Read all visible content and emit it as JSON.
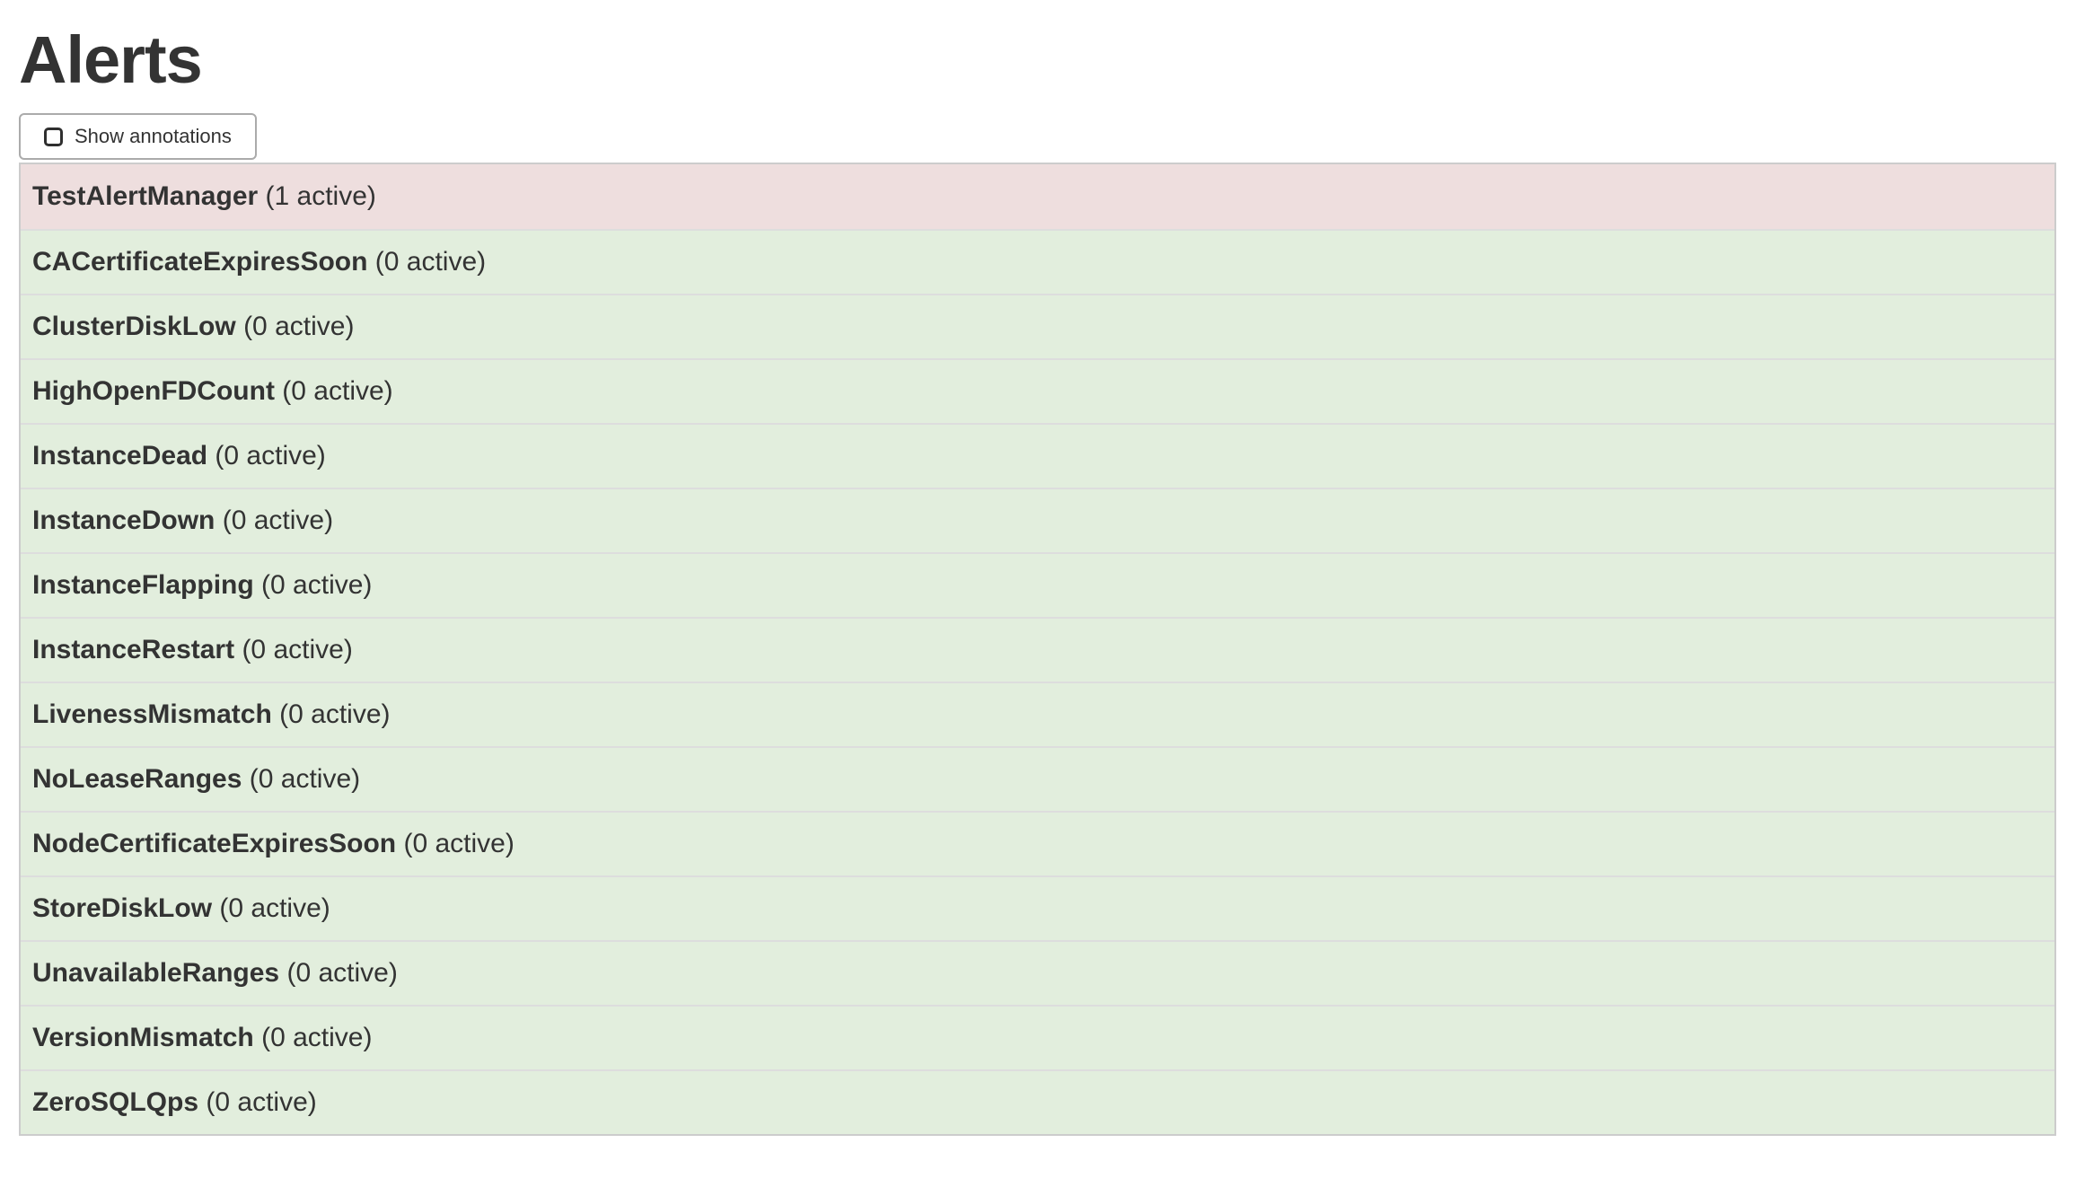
{
  "page": {
    "title": "Alerts"
  },
  "toolbar": {
    "show_annotations": {
      "label": "Show annotations",
      "checked": false
    }
  },
  "colors": {
    "firing_row_bg": "#eedede",
    "inactive_row_bg": "#e2eedd",
    "row_separator": "#dddddd",
    "table_border": "#cccccc",
    "text": "#333333"
  },
  "alerts": [
    {
      "name": "TestAlertManager",
      "active_count": 1,
      "count_label": "(1 active)",
      "state": "firing"
    },
    {
      "name": "CACertificateExpiresSoon",
      "active_count": 0,
      "count_label": "(0 active)",
      "state": "inactive"
    },
    {
      "name": "ClusterDiskLow",
      "active_count": 0,
      "count_label": "(0 active)",
      "state": "inactive"
    },
    {
      "name": "HighOpenFDCount",
      "active_count": 0,
      "count_label": "(0 active)",
      "state": "inactive"
    },
    {
      "name": "InstanceDead",
      "active_count": 0,
      "count_label": "(0 active)",
      "state": "inactive"
    },
    {
      "name": "InstanceDown",
      "active_count": 0,
      "count_label": "(0 active)",
      "state": "inactive"
    },
    {
      "name": "InstanceFlapping",
      "active_count": 0,
      "count_label": "(0 active)",
      "state": "inactive"
    },
    {
      "name": "InstanceRestart",
      "active_count": 0,
      "count_label": "(0 active)",
      "state": "inactive"
    },
    {
      "name": "LivenessMismatch",
      "active_count": 0,
      "count_label": "(0 active)",
      "state": "inactive"
    },
    {
      "name": "NoLeaseRanges",
      "active_count": 0,
      "count_label": "(0 active)",
      "state": "inactive"
    },
    {
      "name": "NodeCertificateExpiresSoon",
      "active_count": 0,
      "count_label": "(0 active)",
      "state": "inactive"
    },
    {
      "name": "StoreDiskLow",
      "active_count": 0,
      "count_label": "(0 active)",
      "state": "inactive"
    },
    {
      "name": "UnavailableRanges",
      "active_count": 0,
      "count_label": "(0 active)",
      "state": "inactive"
    },
    {
      "name": "VersionMismatch",
      "active_count": 0,
      "count_label": "(0 active)",
      "state": "inactive"
    },
    {
      "name": "ZeroSQLQps",
      "active_count": 0,
      "count_label": "(0 active)",
      "state": "inactive"
    }
  ]
}
